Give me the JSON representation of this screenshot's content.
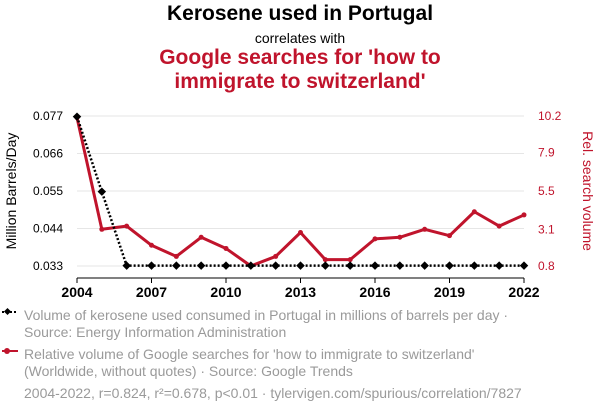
{
  "header": {
    "title": "Kerosene used in Portugal",
    "correlates": "correlates with",
    "subtitle_line1": "Google searches for 'how to",
    "subtitle_line2": "immigrate to switzerland'"
  },
  "colors": {
    "series1": "#000000",
    "series2": "#c0142c",
    "grid": "#e6e6e6",
    "muted": "#9a9a9a"
  },
  "chart_data": {
    "type": "line",
    "x": [
      2004,
      2005,
      2006,
      2007,
      2008,
      2009,
      2010,
      2011,
      2012,
      2013,
      2014,
      2015,
      2016,
      2017,
      2018,
      2019,
      2020,
      2021,
      2022
    ],
    "xticks": [
      "2004",
      "2007",
      "2010",
      "2013",
      "2016",
      "2019",
      "2022"
    ],
    "xlim": [
      2004,
      2022
    ],
    "left_axis": {
      "label": "Million Barrels/Day",
      "ticks": [
        "0.077",
        "0.066",
        "0.055",
        "0.044",
        "0.033"
      ],
      "tick_values": [
        0.077,
        0.066,
        0.055,
        0.044,
        0.033
      ],
      "ylim": [
        0.033,
        0.077
      ]
    },
    "right_axis": {
      "label": "Rel. search volume",
      "ticks": [
        "10.2",
        "7.9",
        "5.5",
        "3.1",
        "0.8"
      ],
      "tick_values": [
        10.2,
        7.9,
        5.5,
        3.1,
        0.8
      ],
      "ylim": [
        0.8,
        10.2
      ]
    },
    "series": [
      {
        "name": "Kerosene used in Portugal",
        "axis": "left",
        "style": "dotted",
        "marker": "diamond",
        "values": [
          0.0768,
          0.0548,
          0.0331,
          0.0331,
          0.0331,
          0.0331,
          0.0331,
          0.0331,
          0.0331,
          0.0331,
          0.0331,
          0.0331,
          0.0331,
          0.0331,
          0.0331,
          0.0331,
          0.0331,
          0.0331,
          0.0331
        ]
      },
      {
        "name": "Google searches for 'how to immigrate to switzerland'",
        "axis": "right",
        "style": "solid",
        "marker": "circle",
        "values": [
          10.1,
          3.1,
          3.3,
          2.1,
          1.4,
          2.6,
          1.9,
          0.8,
          1.4,
          2.9,
          1.2,
          1.2,
          2.5,
          2.6,
          3.1,
          2.7,
          4.2,
          3.3,
          4.0
        ]
      }
    ]
  },
  "legend": {
    "item1": "Volume of kerosene used consumed in Portugal in millions of barrels per day · Source: Energy Information Administration",
    "item2": "Relative volume of Google searches for 'how to immigrate to switzerland' (Worldwide, without quotes) · Source: Google Trends"
  },
  "footer": "2004-2022, r=0.824, r²=0.678, p<0.01 · tylervigen.com/spurious/correlation/7827"
}
